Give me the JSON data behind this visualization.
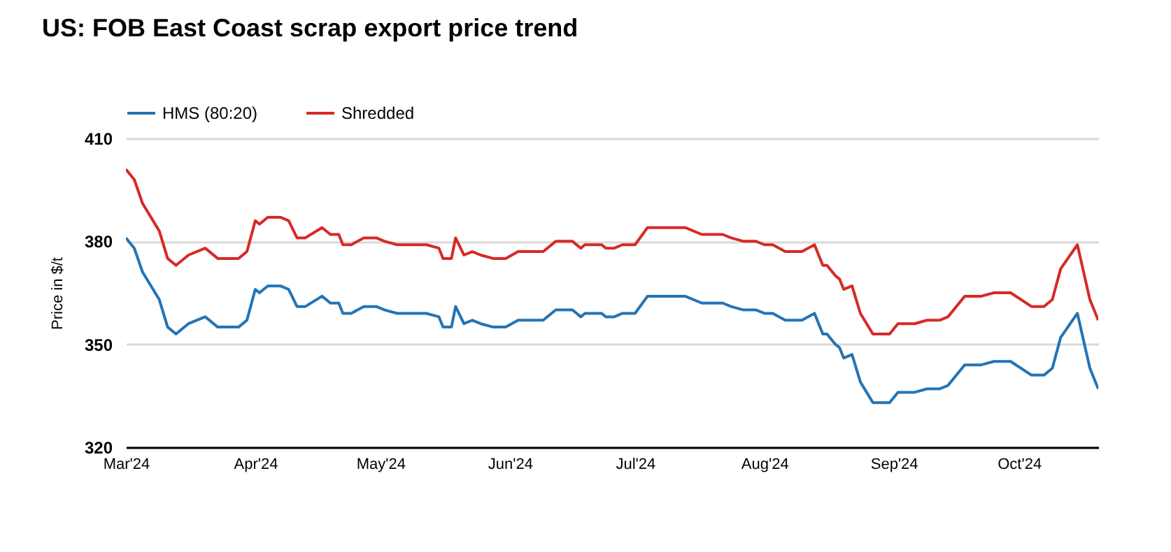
{
  "chart_data": {
    "type": "line",
    "title": "US: FOB East Coast scrap export price trend",
    "ylabel": "Price in $/t",
    "x": [
      "2024-03-01",
      "2024-03-03",
      "2024-03-05",
      "2024-03-09",
      "2024-03-11",
      "2024-03-13",
      "2024-03-16",
      "2024-03-20",
      "2024-03-23",
      "2024-03-28",
      "2024-03-30",
      "2024-04-01",
      "2024-04-02",
      "2024-04-04",
      "2024-04-07",
      "2024-04-09",
      "2024-04-11",
      "2024-04-13",
      "2024-04-17",
      "2024-04-19",
      "2024-04-21",
      "2024-04-22",
      "2024-04-24",
      "2024-04-27",
      "2024-04-30",
      "2024-05-02",
      "2024-05-05",
      "2024-05-12",
      "2024-05-15",
      "2024-05-16",
      "2024-05-18",
      "2024-05-19",
      "2024-05-21",
      "2024-05-23",
      "2024-05-25",
      "2024-05-28",
      "2024-05-31",
      "2024-06-03",
      "2024-06-09",
      "2024-06-12",
      "2024-06-16",
      "2024-06-18",
      "2024-06-19",
      "2024-06-23",
      "2024-06-24",
      "2024-06-26",
      "2024-06-28",
      "2024-07-01",
      "2024-07-04",
      "2024-07-13",
      "2024-07-17",
      "2024-07-22",
      "2024-07-24",
      "2024-07-27",
      "2024-07-30",
      "2024-08-01",
      "2024-08-03",
      "2024-08-06",
      "2024-08-10",
      "2024-08-13",
      "2024-08-15",
      "2024-08-16",
      "2024-08-18",
      "2024-08-19",
      "2024-08-20",
      "2024-08-22",
      "2024-08-24",
      "2024-08-27",
      "2024-08-29",
      "2024-08-31",
      "2024-09-02",
      "2024-09-06",
      "2024-09-09",
      "2024-09-12",
      "2024-09-14",
      "2024-09-18",
      "2024-09-22",
      "2024-09-25",
      "2024-09-29",
      "2024-10-04",
      "2024-10-07",
      "2024-10-09",
      "2024-10-11",
      "2024-10-15",
      "2024-10-18",
      "2024-10-20"
    ],
    "series": [
      {
        "name": "HMS (80:20)",
        "color": "#2474b5",
        "values": [
          381,
          378,
          371,
          363,
          355,
          353,
          356,
          358,
          355,
          355,
          357,
          366,
          365,
          367,
          367,
          366,
          361,
          361,
          364,
          362,
          362,
          359,
          359,
          361,
          361,
          360,
          359,
          359,
          358,
          355,
          355,
          361,
          356,
          357,
          356,
          355,
          355,
          357,
          357,
          360,
          360,
          358,
          359,
          359,
          358,
          358,
          359,
          359,
          364,
          364,
          362,
          362,
          361,
          360,
          360,
          359,
          359,
          357,
          357,
          359,
          353,
          353,
          350,
          349,
          346,
          347,
          339,
          333,
          333,
          333,
          336,
          336,
          337,
          337,
          338,
          344,
          344,
          345,
          345,
          341,
          341,
          343,
          352,
          359,
          343,
          337
        ]
      },
      {
        "name": "Shredded",
        "color": "#d62a27",
        "values": [
          401,
          398,
          391,
          383,
          375,
          373,
          376,
          378,
          375,
          375,
          377,
          386,
          385,
          387,
          387,
          386,
          381,
          381,
          384,
          382,
          382,
          379,
          379,
          381,
          381,
          380,
          379,
          379,
          378,
          375,
          375,
          381,
          376,
          377,
          376,
          375,
          375,
          377,
          377,
          380,
          380,
          378,
          379,
          379,
          378,
          378,
          379,
          379,
          384,
          384,
          382,
          382,
          381,
          380,
          380,
          379,
          379,
          377,
          377,
          379,
          373,
          373,
          370,
          369,
          366,
          367,
          359,
          353,
          353,
          353,
          356,
          356,
          357,
          357,
          358,
          364,
          364,
          365,
          365,
          361,
          361,
          363,
          372,
          379,
          363,
          357
        ]
      }
    ],
    "xlim": [
      "2024-03-01",
      "2024-10-20"
    ],
    "xticks": [
      {
        "value": "2024-03-01",
        "label": "Mar'24"
      },
      {
        "value": "2024-04-01",
        "label": "Apr'24"
      },
      {
        "value": "2024-05-01",
        "label": "May'24"
      },
      {
        "value": "2024-06-01",
        "label": "Jun'24"
      },
      {
        "value": "2024-07-01",
        "label": "Jul'24"
      },
      {
        "value": "2024-08-01",
        "label": "Aug'24"
      },
      {
        "value": "2024-09-01",
        "label": "Sep'24"
      },
      {
        "value": "2024-10-01",
        "label": "Oct'24"
      }
    ],
    "ylim": [
      320,
      410
    ],
    "yticks": [
      320,
      350,
      380,
      410
    ],
    "grid": "y",
    "legend": "top left"
  }
}
